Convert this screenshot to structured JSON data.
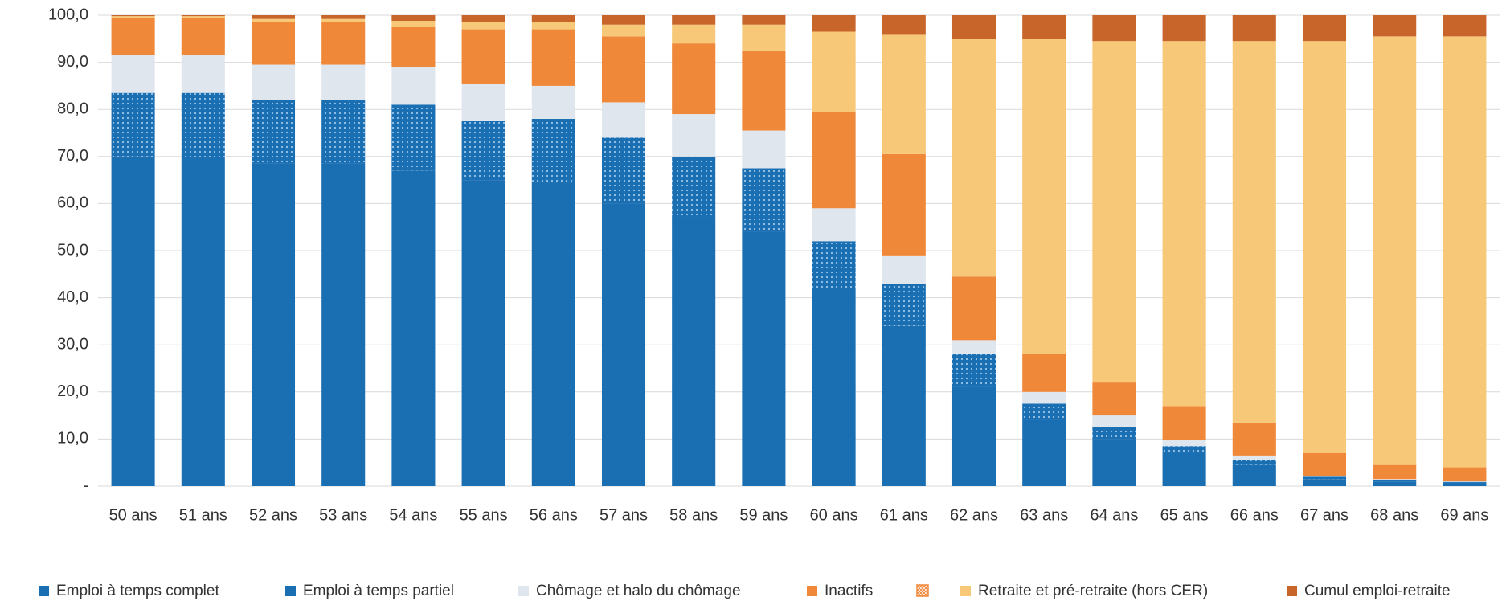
{
  "chart_data": {
    "type": "stacked_bar",
    "categories": [
      "50 ans",
      "51 ans",
      "52 ans",
      "53 ans",
      "54 ans",
      "55 ans",
      "56 ans",
      "57 ans",
      "58 ans",
      "59 ans",
      "60 ans",
      "61 ans",
      "62 ans",
      "63 ans",
      "64 ans",
      "65 ans",
      "66 ans",
      "67 ans",
      "68 ans",
      "69 ans"
    ],
    "series": [
      {
        "name": "Emploi à temps complet",
        "color": "#1a6fb3",
        "values": [
          70,
          69,
          68.5,
          68.5,
          67,
          65,
          64.5,
          60,
          57,
          54,
          42,
          34,
          21,
          14,
          10,
          7,
          4.5,
          1.5,
          1,
          0.7
        ]
      },
      {
        "name": "Emploi à temps partiel",
        "color": "#1a6fb3",
        "pattern": "dots",
        "values": [
          13.5,
          14.5,
          13.5,
          13.5,
          14,
          12.5,
          13.5,
          14,
          13,
          13.5,
          10,
          9,
          7,
          3.5,
          2.5,
          1.5,
          1,
          0.5,
          0.3,
          0.2
        ]
      },
      {
        "name": "Chômage et halo du chômage",
        "color": "#dfe6ee",
        "values": [
          8,
          8,
          7.5,
          7.5,
          8,
          8,
          7,
          7.5,
          9,
          8,
          7,
          6,
          3,
          2.5,
          2.5,
          1.3,
          1,
          0.2,
          0.2,
          0.1
        ]
      },
      {
        "name": "Inactifs",
        "color": "#f0883a",
        "values": [
          8,
          8,
          9,
          9,
          8.5,
          11.5,
          12,
          14,
          15,
          17,
          20.5,
          21.5,
          13.5,
          8,
          7,
          7.2,
          7,
          4.8,
          3,
          3
        ]
      },
      {
        "name": "Retraite et pré-retraite (hors CER)",
        "color": "#f7c878",
        "values": [
          0.3,
          0.3,
          0.7,
          0.7,
          1.3,
          1.5,
          1.5,
          2.5,
          4,
          5.5,
          17,
          25.5,
          50.5,
          67,
          72.5,
          77.5,
          81,
          87.5,
          91,
          91.5
        ]
      },
      {
        "name": "Cumul emploi-retraite",
        "color": "#c8652a",
        "values": [
          0.2,
          0.2,
          0.8,
          0.8,
          1.2,
          1.5,
          1.5,
          2,
          2,
          2,
          3.5,
          4,
          5,
          5,
          5.5,
          5.5,
          5.5,
          5.5,
          4.5,
          4.5
        ]
      }
    ],
    "ylim": [
      0,
      100
    ],
    "yticks": [
      {
        "value": 0,
        "label": "-"
      },
      {
        "value": 10,
        "label": "10,0"
      },
      {
        "value": 20,
        "label": "20,0"
      },
      {
        "value": 30,
        "label": "30,0"
      },
      {
        "value": 40,
        "label": "40,0"
      },
      {
        "value": 50,
        "label": "50,0"
      },
      {
        "value": 60,
        "label": "60,0"
      },
      {
        "value": 70,
        "label": "70,0"
      },
      {
        "value": 80,
        "label": "80,0"
      },
      {
        "value": 90,
        "label": "90,0"
      },
      {
        "value": 100,
        "label": "100,0"
      }
    ],
    "grid": true
  }
}
